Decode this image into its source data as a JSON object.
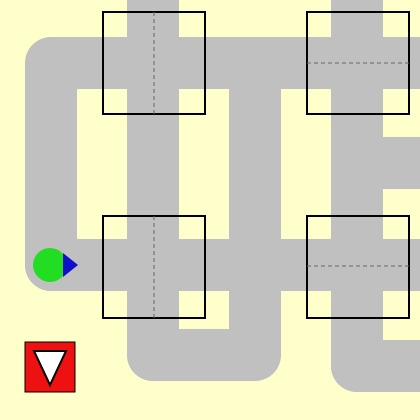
{
  "colors": {
    "background": "#FFFFCC",
    "road": "#C0C0C0",
    "intersection_border": "#000000",
    "intersection_divider": "#666666",
    "player_body": "#22DD22",
    "player_direction": "#1010CC",
    "control_fill": "#EE1111",
    "control_arrow": "#FFFFFF"
  },
  "icons": {
    "player": "green-circle-with-blue-arrow",
    "control": "down-triangle"
  },
  "player": {
    "facing": "right"
  },
  "intersections": [
    {
      "name": "intersection-top-left",
      "divider": "vertical"
    },
    {
      "name": "intersection-top-right",
      "divider": "horizontal"
    },
    {
      "name": "intersection-bottom-left",
      "divider": "vertical"
    },
    {
      "name": "intersection-bottom-right",
      "divider": "horizontal"
    }
  ]
}
